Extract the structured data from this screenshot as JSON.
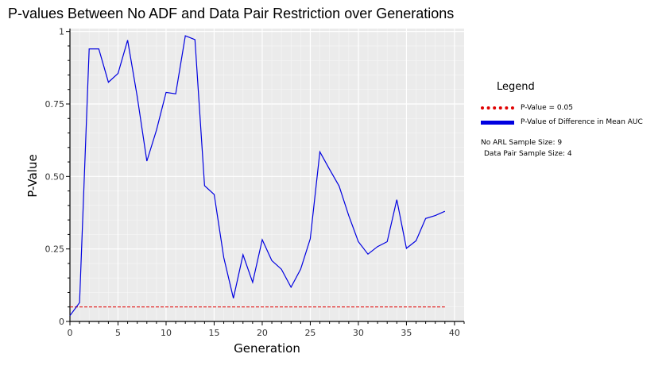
{
  "chart_data": {
    "type": "line",
    "title": "P-values Between No ADF and Data Pair Restriction over Generations",
    "xlabel": "Generation",
    "ylabel": "P-Value",
    "xlim": [
      0,
      41
    ],
    "ylim": [
      0,
      1.01
    ],
    "xticks": [
      0,
      5,
      10,
      15,
      20,
      25,
      30,
      35,
      40
    ],
    "xtick_labels": [
      "0",
      "5",
      "10",
      "15",
      "20",
      "25",
      "30",
      "35",
      "40"
    ],
    "yticks": [
      0,
      0.25,
      0.5,
      0.75,
      1
    ],
    "ytick_labels": [
      "0",
      "0.25",
      "0.50",
      "0.75",
      "1"
    ],
    "grid": true,
    "legend_position": "right",
    "threshold": {
      "name": "P-Value = 0.05",
      "value": 0.05,
      "x": [
        0,
        39
      ],
      "color": "#e00000"
    },
    "series": [
      {
        "name": "P-Value of Difference in Mean AUC",
        "color": "#0000e0",
        "x": [
          0,
          1,
          2,
          3,
          4,
          5,
          6,
          7,
          8,
          9,
          10,
          11,
          12,
          13,
          14,
          15,
          16,
          17,
          18,
          19,
          20,
          21,
          22,
          23,
          24,
          25,
          26,
          27,
          28,
          29,
          30,
          31,
          32,
          33,
          34,
          35,
          36,
          37,
          38,
          39
        ],
        "values": [
          0.02,
          0.065,
          0.94,
          0.94,
          0.825,
          0.855,
          0.97,
          0.775,
          0.553,
          0.66,
          0.79,
          0.785,
          0.985,
          0.972,
          0.468,
          0.438,
          0.22,
          0.08,
          0.23,
          0.135,
          0.282,
          0.21,
          0.18,
          0.118,
          0.18,
          0.285,
          0.585,
          0.525,
          0.467,
          0.365,
          0.275,
          0.232,
          0.258,
          0.275,
          0.42,
          0.252,
          0.278,
          0.355,
          0.365,
          0.38
        ]
      }
    ]
  },
  "legend": {
    "title": "Legend",
    "notes": [
      "No ARL Sample Size: 9",
      "Data Pair Sample Size: 4"
    ]
  }
}
